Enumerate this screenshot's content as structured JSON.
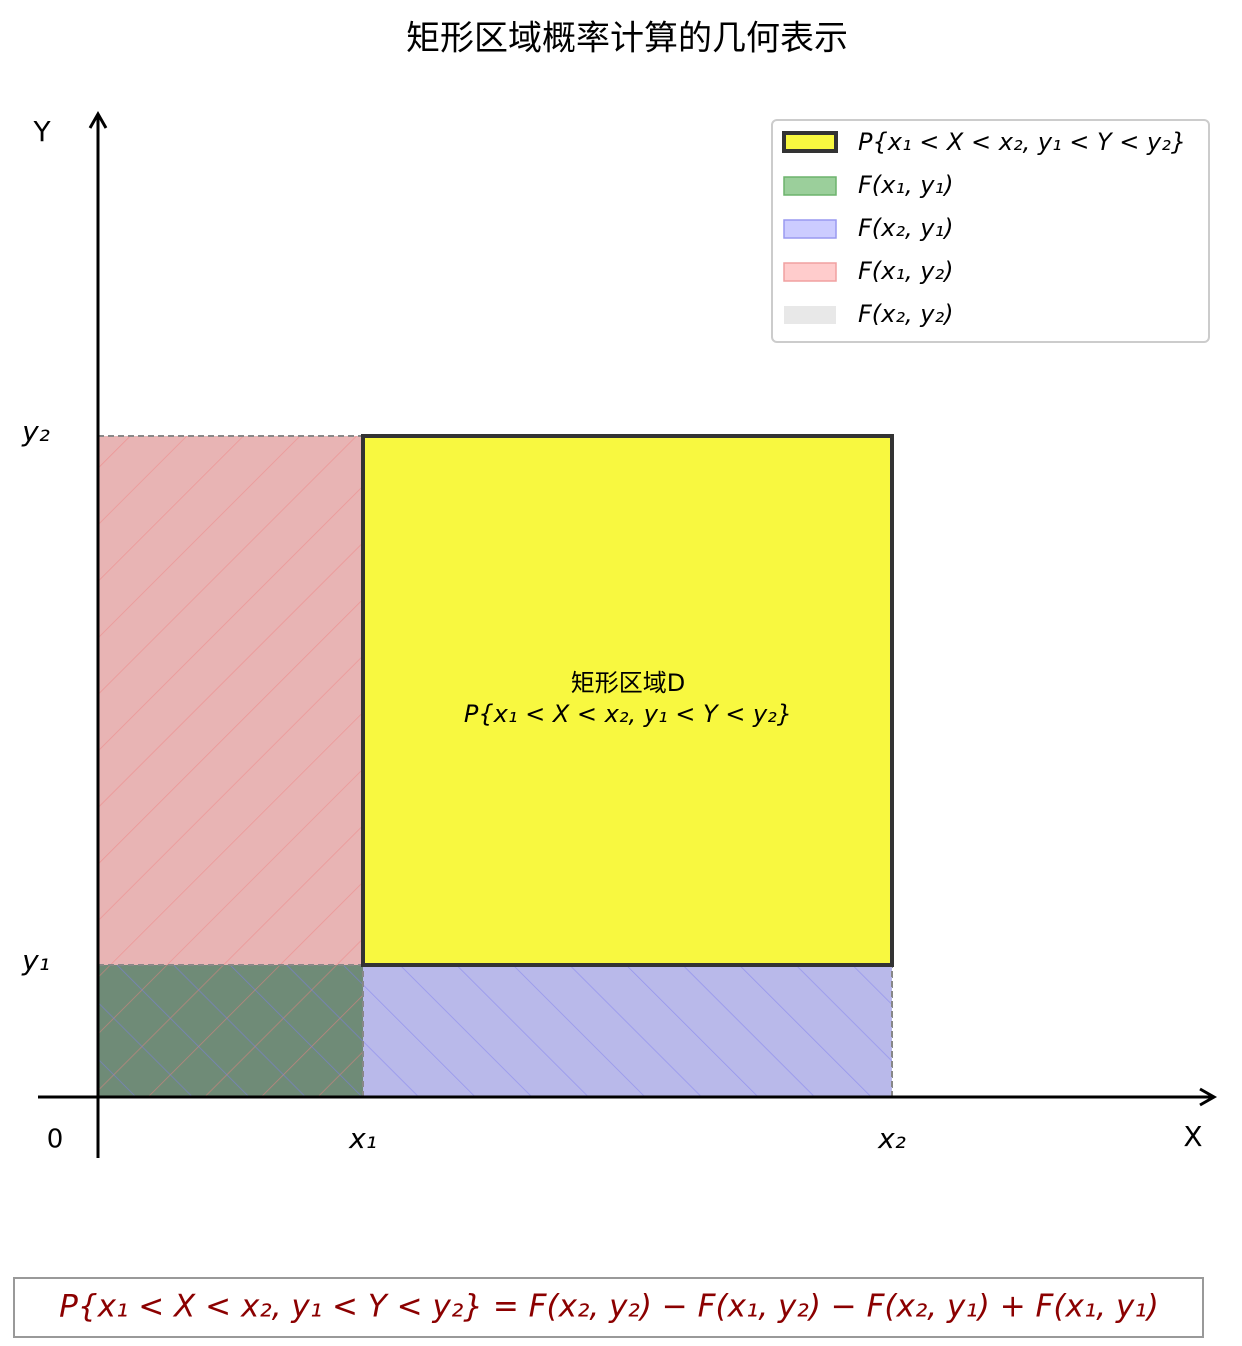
{
  "title": "矩形区域概率计算的几何表示",
  "axes": {
    "x_label": "X",
    "y_label": "Y",
    "origin": "0",
    "x_ticks": [
      "x₁",
      "x₂"
    ],
    "y_ticks": [
      "y₁",
      "y₂"
    ]
  },
  "legend": [
    "P{x₁ < X < x₂, y₁ < Y < y₂}",
    "F(x₁, y₁)",
    "F(x₂, y₁)",
    "F(x₁, y₂)",
    "F(x₂, y₂)"
  ],
  "region_label": [
    "矩形区域D",
    "P{x₁ < X < x₂, y₁ < Y < y₂}"
  ],
  "formula": "P{x₁ < X < x₂, y₁ < Y < y₂} = F(x₂, y₂) − F(x₁, y₂) − F(x₂, y₁) + F(x₁, y₁)"
}
